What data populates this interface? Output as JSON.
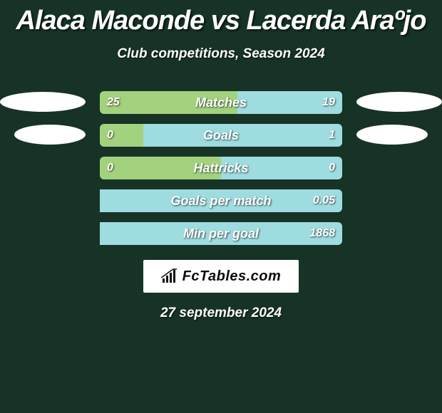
{
  "page": {
    "background_color": "#163326",
    "text_color": "#ffffff",
    "title": "Alaca Maconde vs Lacerda Araºjo",
    "title_fontsize": 38,
    "subtitle": "Club competitions, Season 2024",
    "subtitle_fontsize": 19,
    "date": "27 september 2024",
    "date_fontsize": 19
  },
  "colors": {
    "left": "#a3d27f",
    "right": "#9edce0",
    "ellipse": "#ffffff",
    "bar_bg": "#163326"
  },
  "logo": {
    "text": "FcTables.com",
    "text_color": "#0b0b0b",
    "bar_color": "#0b0b0b",
    "bg": "#ffffff"
  },
  "rows": [
    {
      "key": "matches",
      "label": "Matches",
      "left_value": "25",
      "right_value": "19",
      "left_fill_pct": 56.8,
      "right_fill_pct": 43.2,
      "ellipse_left": true,
      "ellipse_right": true,
      "ellipse_small": false
    },
    {
      "key": "goals",
      "label": "Goals",
      "left_value": "0",
      "right_value": "1",
      "left_fill_pct": 18,
      "right_fill_pct": 82,
      "ellipse_left": true,
      "ellipse_right": true,
      "ellipse_small": true
    },
    {
      "key": "hattricks",
      "label": "Hattricks",
      "left_value": "0",
      "right_value": "0",
      "left_fill_pct": 50,
      "right_fill_pct": 50,
      "ellipse_left": false,
      "ellipse_right": false,
      "ellipse_small": false
    },
    {
      "key": "gpm",
      "label": "Goals per match",
      "left_value": "",
      "right_value": "0.05",
      "left_fill_pct": 0,
      "right_fill_pct": 100,
      "ellipse_left": false,
      "ellipse_right": false,
      "ellipse_small": false
    },
    {
      "key": "mpg",
      "label": "Min per goal",
      "left_value": "",
      "right_value": "1868",
      "left_fill_pct": 0,
      "right_fill_pct": 100,
      "ellipse_left": false,
      "ellipse_right": false,
      "ellipse_small": false
    }
  ]
}
